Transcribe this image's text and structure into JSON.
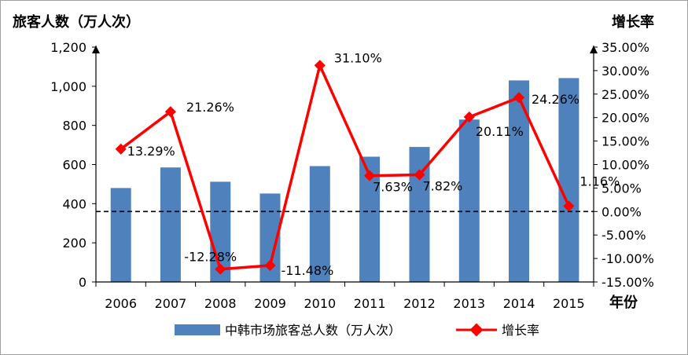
{
  "chart_data": {
    "type": "bar+line",
    "y_left_title": "旅客人数（万人次）",
    "y_right_title": "增长率",
    "x_title": "年份",
    "categories": [
      "2006",
      "2007",
      "2008",
      "2009",
      "2010",
      "2011",
      "2012",
      "2013",
      "2014",
      "2015"
    ],
    "y_left_range": [
      0,
      1200
    ],
    "y_left_ticks": [
      "0",
      "200",
      "400",
      "600",
      "800",
      "1,000",
      "1,200"
    ],
    "y_left_tick_values": [
      0,
      200,
      400,
      600,
      800,
      1000,
      1200
    ],
    "y_right_range": [
      -15,
      35
    ],
    "y_right_ticks": [
      "-15.00%",
      "-10.00%",
      "-5.00%",
      "0.00%",
      "5.00%",
      "10.00%",
      "15.00%",
      "20.00%",
      "25.00%",
      "30.00%",
      "35.00%"
    ],
    "y_right_tick_values": [
      -15,
      -10,
      -5,
      0,
      5,
      10,
      15,
      20,
      25,
      30,
      35
    ],
    "reference_line": {
      "axis": "right",
      "value": 0,
      "style": "dashed"
    },
    "series": [
      {
        "name": "中韩市场旅客总人数（万人次）",
        "type": "bar",
        "axis": "left",
        "color": "#4F81BD",
        "values": [
          480,
          585,
          512,
          452,
          592,
          640,
          690,
          830,
          1030,
          1042
        ]
      },
      {
        "name": "增长率",
        "type": "line",
        "axis": "right",
        "color": "#FF0000",
        "values": [
          13.29,
          21.26,
          -12.28,
          -11.48,
          31.1,
          7.63,
          7.82,
          20.11,
          24.26,
          1.16
        ],
        "labels": [
          "13.29%",
          "21.26%",
          "-12.28%",
          "-11.48%",
          "31.10%",
          "7.63%",
          "7.82%",
          "20.11%",
          "24.26%",
          "1.16%"
        ]
      }
    ],
    "legend": {
      "placement": "bottom"
    },
    "grid": false
  }
}
